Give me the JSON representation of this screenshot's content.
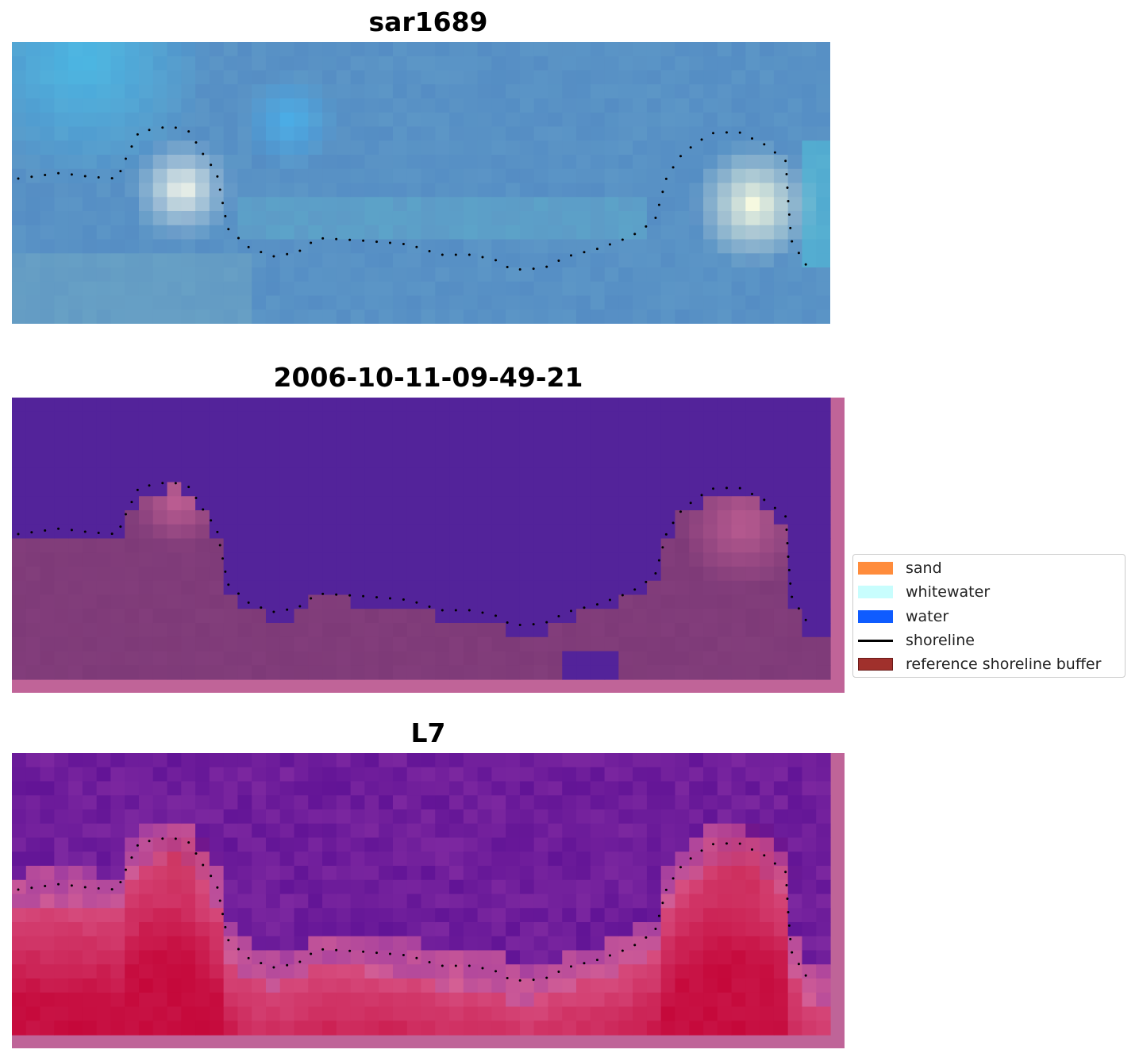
{
  "panels": [
    {
      "title": "sar1689",
      "kind": "sar"
    },
    {
      "title": "2006-10-11-09-49-21",
      "kind": "class"
    },
    {
      "title": "L7",
      "kind": "prob"
    }
  ],
  "legend": {
    "items": [
      {
        "label": "sand",
        "color": "#ff8c3c",
        "type": "patch"
      },
      {
        "label": "whitewater",
        "color": "#c8fdfd",
        "type": "patch"
      },
      {
        "label": "water",
        "color": "#0f5cff",
        "type": "patch"
      },
      {
        "label": "shoreline",
        "color": "#000000",
        "type": "line"
      },
      {
        "label": "reference shoreline buffer",
        "color": "#a0302c",
        "type": "patch"
      }
    ]
  },
  "colors": {
    "sar_base": "#5f95c4",
    "water_purple": "#53239a",
    "land_mauve": "#7d3a78",
    "border_pink": "#c06498",
    "prob_red": "#c8103c"
  }
}
